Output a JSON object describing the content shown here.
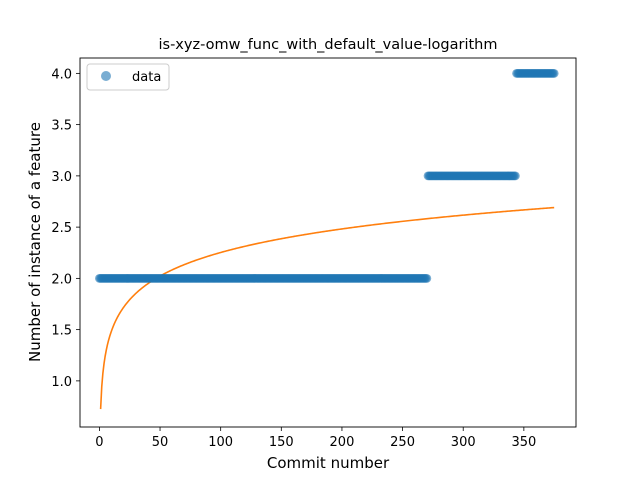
{
  "chart_data": {
    "type": "scatter",
    "title": "is-xyz-omw_func_with_default_value-logarithm",
    "xlabel": "Commit number",
    "ylabel": "Number of instance of a feature",
    "xlim": [
      -16,
      393
    ],
    "ylim": [
      0.55,
      4.15
    ],
    "xticks": [
      0,
      50,
      100,
      150,
      200,
      250,
      300,
      350
    ],
    "yticks": [
      1.0,
      1.5,
      2.0,
      2.5,
      3.0,
      3.5,
      4.0
    ],
    "legend": {
      "position": "upper-left",
      "entries": [
        "data"
      ]
    },
    "colors": {
      "data": "#1f77b4",
      "fit": "#ff7f0e"
    },
    "series": [
      {
        "name": "data",
        "kind": "scatter",
        "segments": [
          {
            "x_start": 0,
            "x_end": 270,
            "y": 2.0
          },
          {
            "x_start": 271,
            "x_end": 343,
            "y": 3.0
          },
          {
            "x_start": 344,
            "x_end": 375,
            "y": 4.0
          }
        ]
      },
      {
        "kind": "line",
        "function": "a + b*ln(x)",
        "params": {
          "a": 0.7249,
          "b": 0.3317
        },
        "x_start": 1,
        "x_end": 375
      }
    ]
  }
}
